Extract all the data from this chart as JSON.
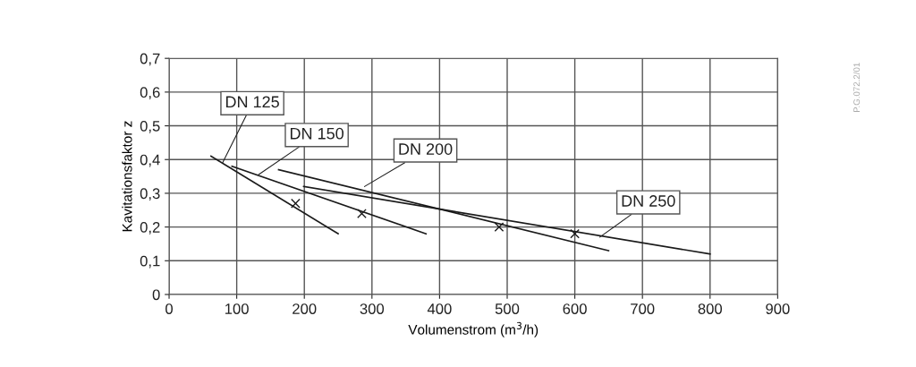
{
  "chart_data": {
    "type": "line",
    "xlabel": "Volumenstrom (m$^{3}$/h)",
    "ylabel": "Kavitationsfaktor z",
    "series": [
      {
        "color": "#1a1a1a",
        "x": [
          62,
          250
        ],
        "values": [
          0.41,
          0.18
        ],
        "marker": "none",
        "line_style": "solid"
      },
      {
        "color": "#1a1a1a",
        "x": [
          93,
          380
        ],
        "values": [
          0.38,
          0.18
        ],
        "marker": "none",
        "line_style": "solid"
      },
      {
        "color": "#1a1a1a",
        "x": [
          162,
          650
        ],
        "values": [
          0.37,
          0.13
        ],
        "marker": "none",
        "line_style": "solid"
      },
      {
        "color": "#1a1a1a",
        "x": [
          199,
          800
        ],
        "values": [
          0.32,
          0.12
        ],
        "marker": "none",
        "line_style": "solid"
      },
      {
        "type": "scatter",
        "color": "#1a1a1a",
        "x": [
          187,
          285,
          488,
          600
        ],
        "values": [
          0.27,
          0.24,
          0.2,
          0.18
        ],
        "marker": "cross"
      }
    ],
    "annotations": [
      {
        "text": "DN 125",
        "x": 79,
        "y": 0.39
      },
      {
        "text": "DN 150",
        "x": 132,
        "y": 0.355
      },
      {
        "text": "DN 200",
        "x": 289,
        "y": 0.32
      },
      {
        "text": "DN 250",
        "x": 637,
        "y": 0.17
      },
      "P.G.072.2/01"
    ],
    "xlim": [
      0,
      900
    ],
    "xticks": [
      0,
      100,
      200,
      300,
      400,
      500,
      600,
      700,
      800,
      900
    ],
    "ylim": [
      0,
      0.7
    ],
    "yticks": [
      {
        "value": 0,
        "label": "0"
      },
      {
        "value": 0.1,
        "label": "0,1"
      },
      {
        "value": 0.2,
        "label": "0,2"
      },
      {
        "value": 0.3,
        "label": "0,3"
      },
      {
        "value": 0.4,
        "label": "0,4"
      },
      {
        "value": 0.5,
        "label": "0,5"
      },
      {
        "value": 0.6,
        "label": "0,6"
      },
      {
        "value": 0.7,
        "label": "0,7"
      }
    ],
    "grid": true
  }
}
